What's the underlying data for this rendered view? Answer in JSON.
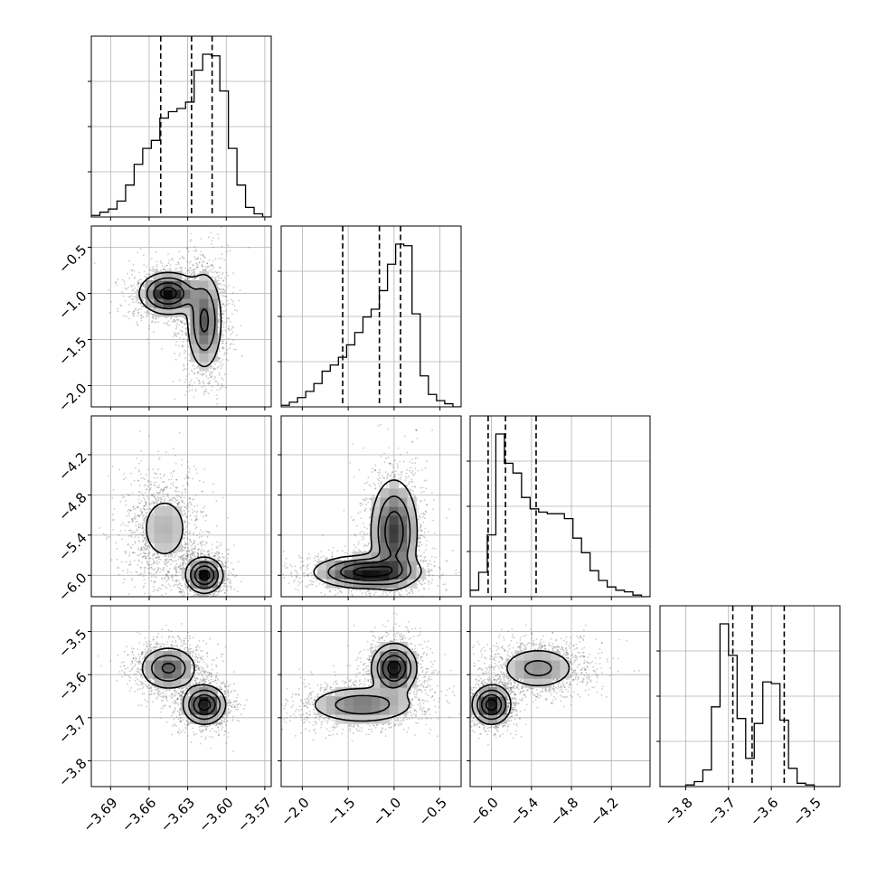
{
  "chart_data": {
    "type": "corner",
    "title": "",
    "grid": true,
    "quantile_lines": "dashed",
    "parameters": [
      {
        "ticks": [
          "−3.69",
          "−3.66",
          "−3.63",
          "−3.60",
          "−3.57"
        ],
        "tick_values": [
          -3.69,
          -3.66,
          -3.63,
          -3.6,
          -3.57
        ],
        "range": [
          -3.705,
          -3.565
        ]
      },
      {
        "ticks": [
          "−2.0",
          "−1.5",
          "−1.0",
          "−0.5"
        ],
        "tick_values": [
          -2.0,
          -1.5,
          -1.0,
          -0.5
        ],
        "range": [
          -2.23,
          -0.27
        ]
      },
      {
        "ticks": [
          "−6.0",
          "−5.4",
          "−4.8",
          "−4.2"
        ],
        "tick_values": [
          -6.0,
          -5.4,
          -4.8,
          -4.2
        ],
        "range": [
          -6.32,
          -3.62
        ]
      },
      {
        "ticks": [
          "−3.8",
          "−3.7",
          "−3.6",
          "−3.5"
        ],
        "tick_values": [
          -3.8,
          -3.7,
          -3.6,
          -3.5
        ],
        "range": [
          -3.86,
          -3.44
        ]
      }
    ],
    "row_ticks": {
      "1": [
        "−0.5",
        "−1.0",
        "−1.5",
        "−2.0"
      ],
      "2": [
        "−4.2",
        "−4.8",
        "−5.4",
        "−6.0"
      ],
      "3": [
        "−3.5",
        "−3.6",
        "−3.7",
        "−3.8"
      ]
    },
    "histograms": [
      {
        "param": 0,
        "counts": [
          1,
          3,
          5,
          10,
          20,
          33,
          43,
          48,
          62,
          66,
          68,
          72,
          92,
          102,
          101,
          79,
          43,
          20,
          6,
          2,
          0
        ],
        "quantiles": [
          -3.651,
          -3.627,
          -3.611
        ]
      },
      {
        "param": 1,
        "counts": [
          1,
          3,
          6,
          10,
          15,
          23,
          27,
          32,
          40,
          48,
          58,
          63,
          75,
          92,
          105,
          104,
          60,
          20,
          8,
          4,
          2,
          0
        ],
        "quantiles": [
          -1.56,
          -1.16,
          -0.93
        ]
      },
      {
        "param": 2,
        "counts": [
          4,
          15,
          38,
          100,
          82,
          76,
          61,
          54,
          52,
          51,
          51,
          48,
          36,
          27,
          16,
          10,
          6,
          4,
          3,
          1,
          0
        ],
        "quantiles": [
          -6.05,
          -5.79,
          -5.33
        ]
      },
      {
        "param": 3,
        "counts": [
          0,
          0,
          0,
          1,
          3,
          10,
          48,
          98,
          79,
          41,
          17,
          38,
          63,
          62,
          40,
          11,
          2,
          1,
          0,
          0,
          0
        ],
        "quantiles": [
          -3.69,
          -3.645,
          -3.57
        ]
      }
    ],
    "pairs": [
      {
        "x_param": 0,
        "y_param": 1,
        "modes": [
          {
            "x": -3.645,
            "y": -1.0,
            "sx": 0.011,
            "sy": 0.11,
            "w": 0.5
          },
          {
            "x": -3.617,
            "y": -1.3,
            "sx": 0.007,
            "sy": 0.27,
            "w": 0.5
          }
        ]
      },
      {
        "x_param": 0,
        "y_param": 2,
        "modes": [
          {
            "x": -3.648,
            "y": -5.3,
            "sx": 0.012,
            "sy": 0.32,
            "w": 0.5
          },
          {
            "x": -3.617,
            "y": -6.0,
            "sx": 0.007,
            "sy": 0.13,
            "w": 0.5
          }
        ]
      },
      {
        "x_param": 0,
        "y_param": 3,
        "modes": [
          {
            "x": -3.645,
            "y": -3.585,
            "sx": 0.011,
            "sy": 0.025,
            "w": 0.5
          },
          {
            "x": -3.617,
            "y": -3.67,
            "sx": 0.008,
            "sy": 0.022,
            "w": 0.5
          }
        ]
      },
      {
        "x_param": 1,
        "y_param": 2,
        "modes": [
          {
            "x": -1.3,
            "y": -5.95,
            "sx": 0.28,
            "sy": 0.12,
            "w": 0.45
          },
          {
            "x": -1.0,
            "y": -5.35,
            "sx": 0.13,
            "sy": 0.4,
            "w": 0.55
          }
        ]
      },
      {
        "x_param": 1,
        "y_param": 3,
        "modes": [
          {
            "x": -1.35,
            "y": -3.67,
            "sx": 0.3,
            "sy": 0.022,
            "w": 0.5
          },
          {
            "x": -1.0,
            "y": -3.585,
            "sx": 0.12,
            "sy": 0.028,
            "w": 0.5
          }
        ]
      },
      {
        "x_param": 2,
        "y_param": 3,
        "modes": [
          {
            "x": -6.0,
            "y": -3.67,
            "sx": 0.14,
            "sy": 0.022,
            "w": 0.5
          },
          {
            "x": -5.3,
            "y": -3.585,
            "sx": 0.3,
            "sy": 0.026,
            "w": 0.5
          }
        ]
      }
    ]
  }
}
